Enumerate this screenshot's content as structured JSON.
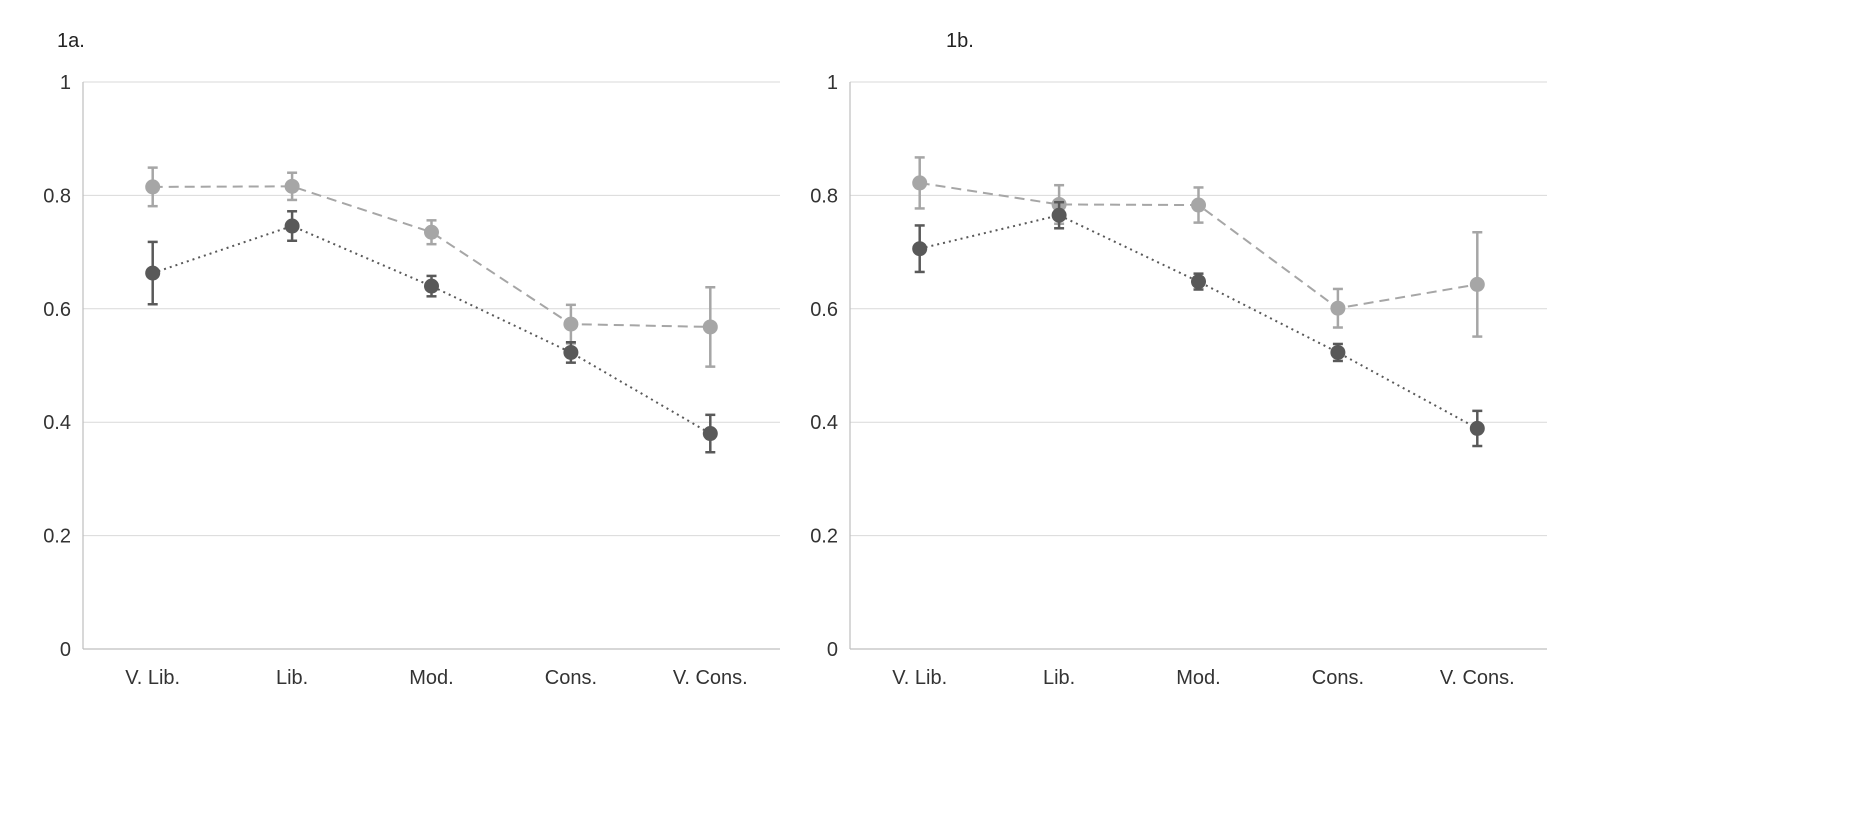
{
  "chart_data": [
    {
      "type": "line",
      "panel_label": "1a.",
      "categories": [
        "V. Lib.",
        "Lib.",
        "Mod.",
        "Cons.",
        "V. Cons."
      ],
      "ylim": [
        0,
        1
      ],
      "yticks": [
        "0",
        "0.2",
        "0.4",
        "0.6",
        "0.8",
        "1"
      ],
      "grid": true,
      "series": [
        {
          "color": "#a6a6a6",
          "dash": "dashed",
          "values": [
            0.815,
            0.816,
            0.735,
            0.573,
            0.568
          ],
          "errors": [
            0.034,
            0.024,
            0.021,
            0.034,
            0.07
          ]
        },
        {
          "color": "#595959",
          "dash": "dotted",
          "values": [
            0.663,
            0.746,
            0.64,
            0.523,
            0.38
          ],
          "errors": [
            0.055,
            0.026,
            0.018,
            0.018,
            0.033
          ]
        }
      ]
    },
    {
      "type": "line",
      "panel_label": "1b.",
      "categories": [
        "V. Lib.",
        "Lib.",
        "Mod.",
        "Cons.",
        "V. Cons."
      ],
      "ylim": [
        0,
        1
      ],
      "yticks": [
        "0",
        "0.2",
        "0.4",
        "0.6",
        "0.8",
        "1"
      ],
      "grid": true,
      "series": [
        {
          "color": "#a6a6a6",
          "dash": "dashed",
          "values": [
            0.822,
            0.784,
            0.783,
            0.601,
            0.643
          ],
          "errors": [
            0.045,
            0.034,
            0.031,
            0.034,
            0.092
          ]
        },
        {
          "color": "#595959",
          "dash": "dotted",
          "values": [
            0.706,
            0.765,
            0.648,
            0.523,
            0.389
          ],
          "errors": [
            0.041,
            0.023,
            0.014,
            0.015,
            0.031
          ]
        }
      ]
    }
  ]
}
